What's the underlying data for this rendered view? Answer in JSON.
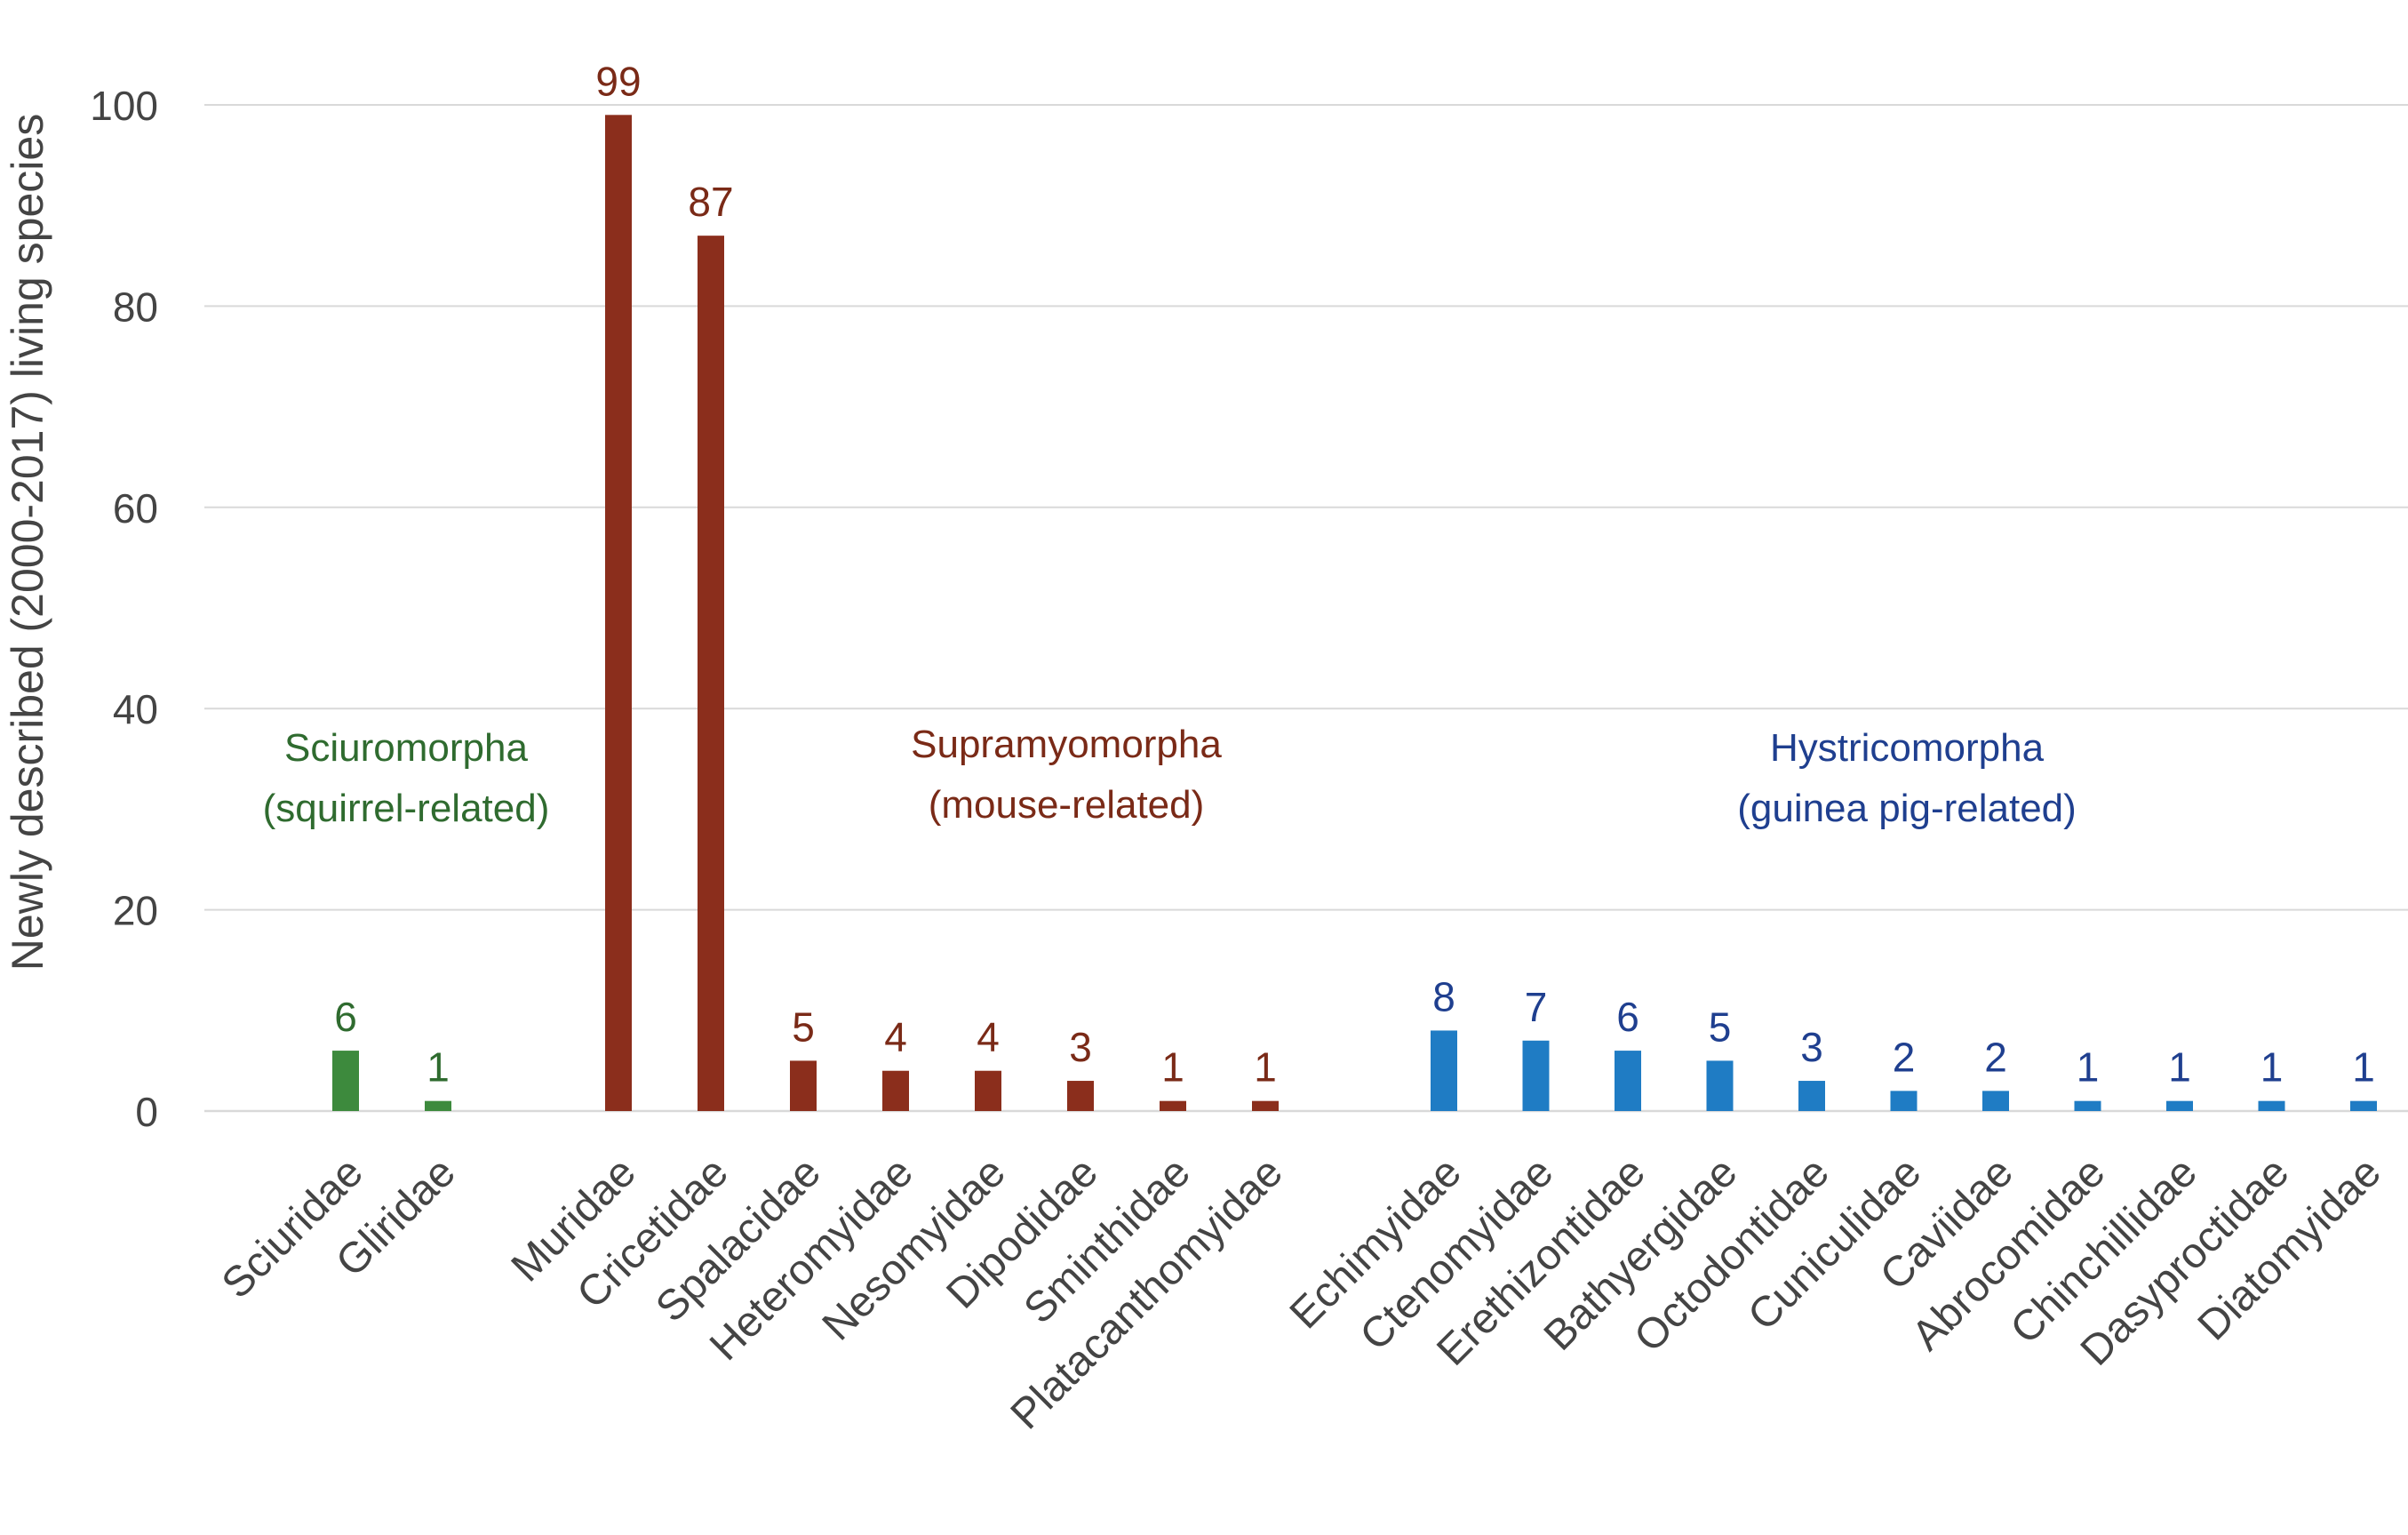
{
  "chart_data": {
    "type": "bar",
    "ylabel": "Newly described (2000-2017) living species",
    "xlabel": "",
    "ylim": [
      0,
      100
    ],
    "yticks": [
      "0",
      "20",
      "40",
      "60",
      "80",
      "100"
    ],
    "grid": true,
    "colors": {
      "sciuromorpha": "#3d8a3d",
      "supramyomorpha": "#8b2e1c",
      "hystricomorpha": "#1f7cc4",
      "sciuromorpha_text": "#2f6b2f",
      "supramyomorpha_text": "#7a2a17",
      "hystricomorpha_text": "#1f3f8f",
      "grid": "#d9d9d9",
      "axis_text": "#444444"
    },
    "groups": [
      {
        "key": "sciuromorpha",
        "name": "Sciuromorpha",
        "subtitle": "(squirrel-related)",
        "categories": [
          "Sciuridae",
          "Gliridae"
        ],
        "values": [
          6,
          1
        ]
      },
      {
        "key": "supramyomorpha",
        "name": "Supramyomorpha",
        "subtitle": "(mouse-related)",
        "categories": [
          "Muridae",
          "Cricetidae",
          "Spalacidae",
          "Heteromyidae",
          "Nesomyidae",
          "Dipodidae",
          "Sminthidae",
          "Platacanthomyidae"
        ],
        "values": [
          99,
          87,
          5,
          4,
          4,
          3,
          1,
          1
        ]
      },
      {
        "key": "hystricomorpha",
        "name": "Hystricomorpha",
        "subtitle": "(guinea pig-related)",
        "categories": [
          "Echimyidae",
          "Ctenomyidae",
          "Erethizontidae",
          "Bathyergidae",
          "Octodontidae",
          "Cuniculidae",
          "Caviidae",
          "Abrocomidae",
          "Chinchillidae",
          "Dasyproctidae",
          "Diatomyidae"
        ],
        "values": [
          8,
          7,
          6,
          5,
          3,
          2,
          2,
          1,
          1,
          1,
          1
        ]
      }
    ]
  }
}
